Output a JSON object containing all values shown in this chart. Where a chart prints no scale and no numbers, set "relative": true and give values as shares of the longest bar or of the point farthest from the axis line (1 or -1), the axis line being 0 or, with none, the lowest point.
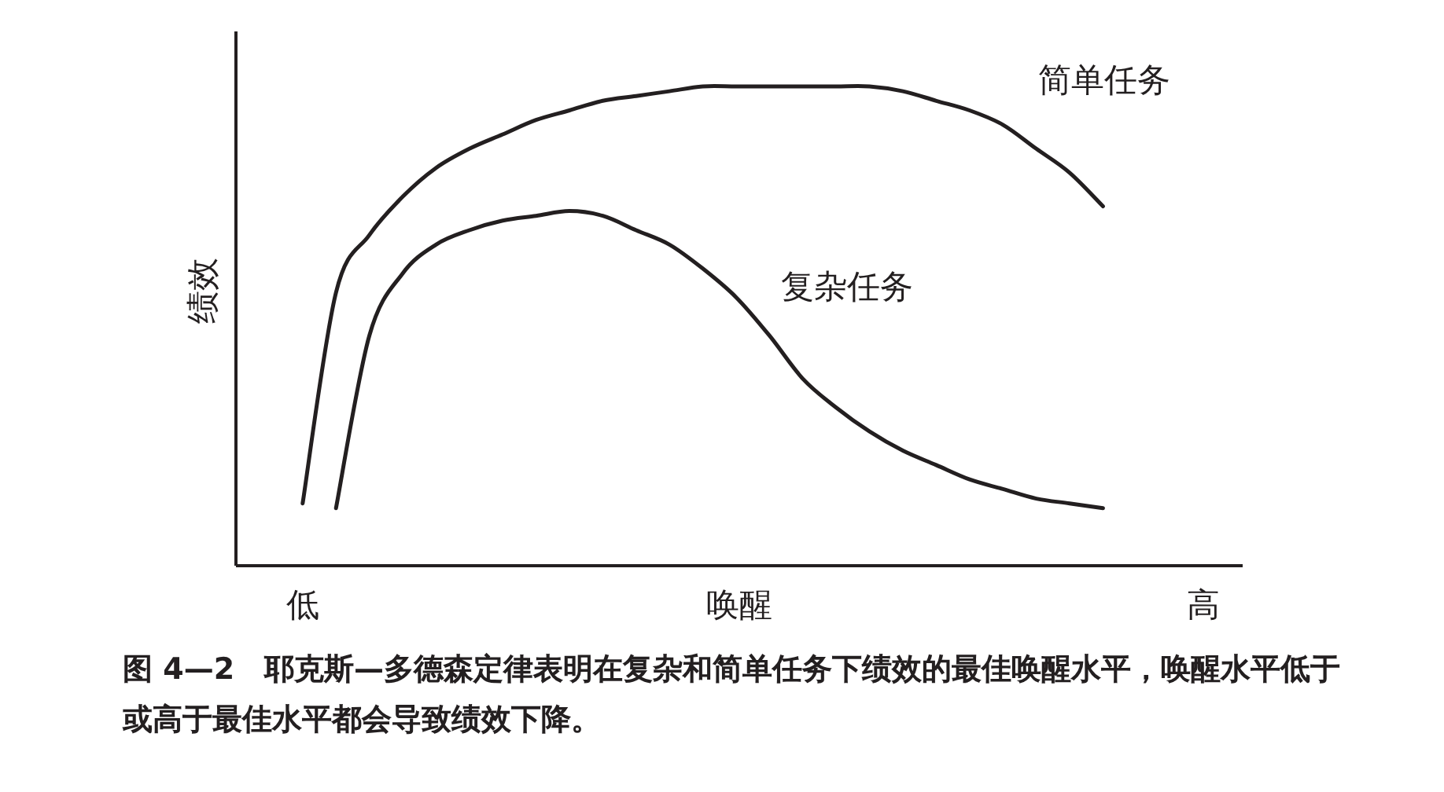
{
  "chart_data": {
    "type": "line",
    "relative": true,
    "xlabel": "唤醒",
    "ylabel": "绩效",
    "categories": [
      null,
      null,
      "低",
      null,
      null,
      null,
      null,
      null,
      null,
      null,
      null,
      null,
      null,
      null,
      null,
      null,
      null,
      null,
      null,
      null,
      null,
      null,
      null,
      null,
      null,
      null,
      null,
      null,
      null,
      "高"
    ],
    "series": [
      {
        "name": "简单任务",
        "color": "#231f20",
        "values": [
          null,
          null,
          0.13,
          0.57,
          0.69,
          0.77,
          0.83,
          0.87,
          0.9,
          0.93,
          0.95,
          0.97,
          0.98,
          0.99,
          1,
          1,
          1,
          1,
          1,
          1,
          0.99,
          0.97,
          0.95,
          0.92,
          0.87,
          0.82,
          0.75,
          null,
          null,
          null
        ]
      },
      {
        "name": "复杂任务",
        "color": "#231f20",
        "values": [
          null,
          null,
          null,
          0.12,
          0.48,
          0.61,
          0.67,
          0.7,
          0.72,
          0.73,
          0.74,
          0.73,
          0.7,
          0.67,
          0.62,
          0.56,
          0.48,
          0.39,
          0.33,
          0.28,
          0.24,
          0.21,
          0.18,
          0.16,
          0.14,
          0.13,
          0.12,
          null,
          null,
          null
        ]
      }
    ],
    "annotations": [
      "图 4—2　耶克斯—多德森定律表明在复杂和简单任务下绩效的最佳唤醒水平，唤醒水平低于或高于最佳水平都会导致绩效下降。"
    ]
  }
}
